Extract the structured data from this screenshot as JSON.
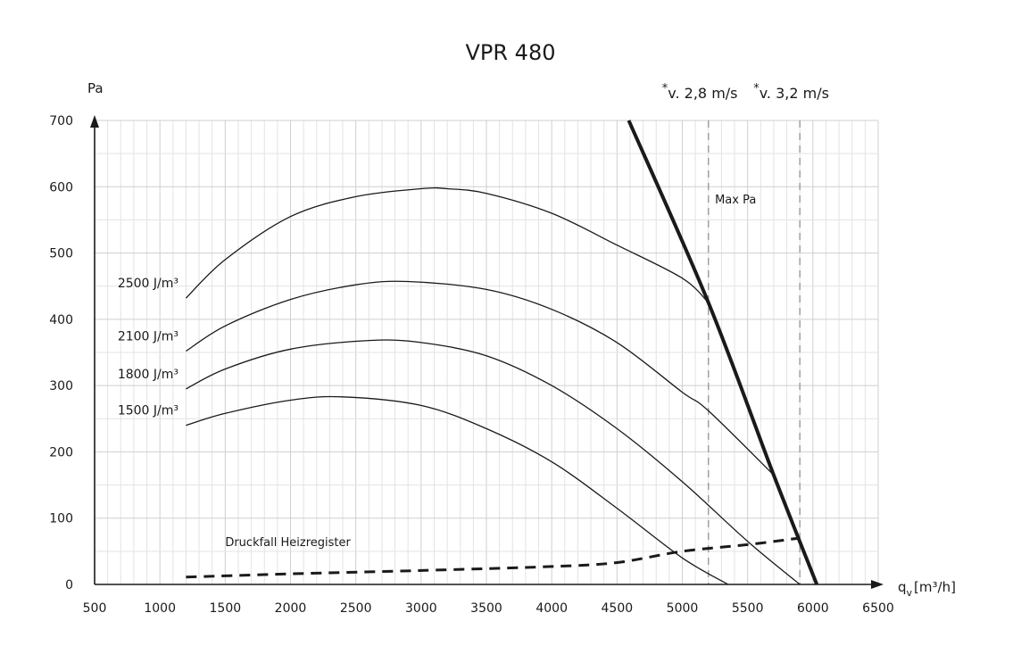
{
  "chart_data": {
    "type": "line",
    "title": "VPR 480",
    "ylabel": "Pa",
    "xlabel_main": "q",
    "xlabel_sub": "v",
    "xlabel_unit": "[m³/h]",
    "xlim": [
      500,
      6500
    ],
    "ylim": [
      0,
      700
    ],
    "x_ticks": [
      500,
      1000,
      1500,
      2000,
      2500,
      3000,
      3500,
      4000,
      4500,
      5000,
      5500,
      6000,
      6500
    ],
    "y_ticks": [
      0,
      100,
      200,
      300,
      400,
      500,
      600,
      700
    ],
    "grid": true,
    "series": [
      {
        "name": "2500 J/m³",
        "style": "thin",
        "points": [
          [
            1200,
            432
          ],
          [
            1500,
            490
          ],
          [
            2000,
            555
          ],
          [
            2500,
            585
          ],
          [
            3000,
            597
          ],
          [
            3200,
            597
          ],
          [
            3500,
            590
          ],
          [
            4000,
            560
          ],
          [
            4500,
            512
          ],
          [
            5000,
            462
          ],
          [
            5200,
            425
          ]
        ]
      },
      {
        "name": "2100 J/m³",
        "style": "thin",
        "points": [
          [
            1200,
            352
          ],
          [
            1500,
            390
          ],
          [
            2000,
            430
          ],
          [
            2500,
            452
          ],
          [
            2900,
            457
          ],
          [
            3500,
            445
          ],
          [
            4000,
            415
          ],
          [
            4500,
            365
          ],
          [
            5000,
            290
          ],
          [
            5200,
            262
          ],
          [
            5700,
            165
          ]
        ]
      },
      {
        "name": "1800 J/m³",
        "style": "thin",
        "points": [
          [
            1200,
            295
          ],
          [
            1500,
            325
          ],
          [
            2000,
            355
          ],
          [
            2600,
            368
          ],
          [
            3000,
            365
          ],
          [
            3500,
            345
          ],
          [
            4000,
            300
          ],
          [
            4500,
            235
          ],
          [
            5000,
            155
          ],
          [
            5500,
            65
          ],
          [
            5900,
            0
          ]
        ]
      },
      {
        "name": "1500 J/m³",
        "style": "thin",
        "points": [
          [
            1200,
            240
          ],
          [
            1500,
            258
          ],
          [
            2000,
            278
          ],
          [
            2400,
            283
          ],
          [
            3000,
            270
          ],
          [
            3500,
            235
          ],
          [
            4000,
            185
          ],
          [
            4500,
            115
          ],
          [
            5000,
            40
          ],
          [
            5350,
            0
          ]
        ]
      },
      {
        "name": "Max Pa",
        "style": "thick",
        "points": [
          [
            4590,
            700
          ],
          [
            5200,
            425
          ],
          [
            5700,
            165
          ],
          [
            6030,
            0
          ]
        ]
      },
      {
        "name": "Druckfall Heizregister",
        "style": "dashed",
        "points": [
          [
            1200,
            11
          ],
          [
            2000,
            16
          ],
          [
            3000,
            21
          ],
          [
            4000,
            27
          ],
          [
            4500,
            33
          ],
          [
            5000,
            50
          ],
          [
            5500,
            60
          ],
          [
            5900,
            70
          ]
        ]
      }
    ],
    "vlines": [
      {
        "x": 5200,
        "label": "v. 2,8 m/s",
        "star": "*"
      },
      {
        "x": 5900,
        "label": "v. 3,2 m/s",
        "star": "*"
      }
    ],
    "annotations": [
      {
        "text": "Max Pa"
      },
      {
        "text": "Druckfall Heizregister"
      }
    ]
  }
}
